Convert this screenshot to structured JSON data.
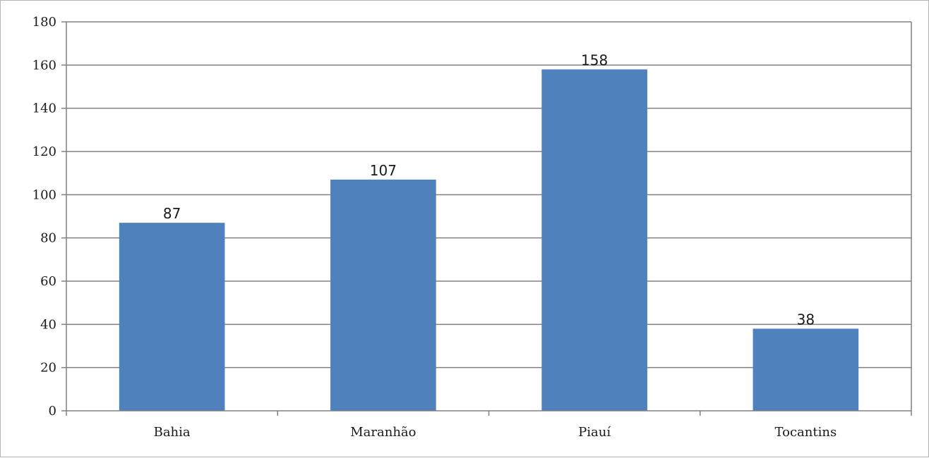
{
  "chart_data": {
    "type": "bar",
    "categories": [
      "Bahia",
      "Maranhão",
      "Piauí",
      "Tocantins"
    ],
    "values": [
      87,
      107,
      158,
      38
    ],
    "data_labels": [
      "87",
      "107",
      "158",
      "38"
    ],
    "y_ticks": [
      0,
      20,
      40,
      60,
      80,
      100,
      120,
      140,
      160,
      180
    ],
    "ylim": [
      0,
      180
    ],
    "grid": true,
    "legend": "none",
    "bar_color": "#4f81bd",
    "gridline_color": "#808080"
  }
}
